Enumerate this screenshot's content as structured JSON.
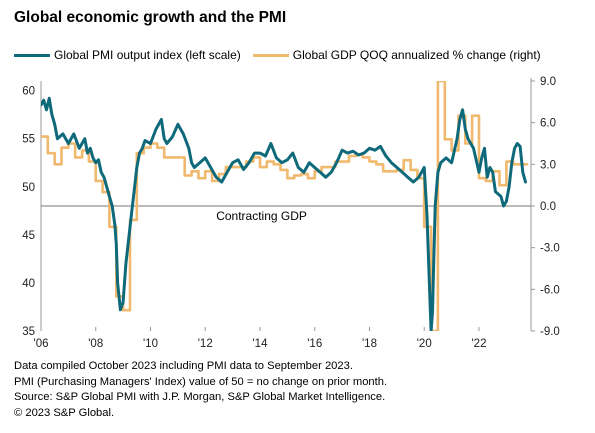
{
  "chart_data": {
    "type": "line",
    "title": "Global economic growth and the PMI",
    "left_axis": {
      "ylim": [
        35,
        61
      ],
      "ticks": [
        35,
        40,
        45,
        50,
        55,
        60
      ]
    },
    "right_axis": {
      "ylim": [
        -9,
        9
      ],
      "ticks": [
        "-9.0",
        "-6.0",
        "-3.0",
        "0.0",
        "3.0",
        "6.0",
        "9.0"
      ]
    },
    "x_axis": {
      "xlim": [
        2006,
        2023.9
      ],
      "ticks": [
        2006,
        2008,
        2010,
        2012,
        2014,
        2016,
        2018,
        2020,
        2022
      ],
      "tick_labels": [
        "'06",
        "'08",
        "'10",
        "'12",
        "'14",
        "'16",
        "'18",
        "'20",
        "'22"
      ]
    },
    "annotation": "Contracting GDP",
    "series": [
      {
        "name": "Global PMI output index (left scale)",
        "axis": "left",
        "color": "#0e6a7a",
        "x": [
          2006.0,
          2006.1,
          2006.2,
          2006.3,
          2006.4,
          2006.5,
          2006.6,
          2006.8,
          2007.0,
          2007.2,
          2007.4,
          2007.6,
          2007.7,
          2007.8,
          2007.9,
          2008.0,
          2008.1,
          2008.2,
          2008.3,
          2008.4,
          2008.5,
          2008.6,
          2008.7,
          2008.75,
          2008.8,
          2008.9,
          2009.0,
          2009.1,
          2009.2,
          2009.3,
          2009.4,
          2009.5,
          2009.6,
          2009.7,
          2009.8,
          2010.0,
          2010.2,
          2010.4,
          2010.5,
          2010.6,
          2010.8,
          2011.0,
          2011.2,
          2011.4,
          2011.5,
          2011.6,
          2011.8,
          2012.0,
          2012.2,
          2012.4,
          2012.6,
          2012.8,
          2013.0,
          2013.2,
          2013.4,
          2013.6,
          2013.8,
          2014.0,
          2014.2,
          2014.4,
          2014.6,
          2014.8,
          2015.0,
          2015.2,
          2015.4,
          2015.6,
          2015.8,
          2016.0,
          2016.2,
          2016.4,
          2016.6,
          2016.8,
          2017.0,
          2017.2,
          2017.4,
          2017.6,
          2017.8,
          2018.0,
          2018.2,
          2018.4,
          2018.6,
          2018.8,
          2019.0,
          2019.2,
          2019.4,
          2019.6,
          2019.8,
          2019.9,
          2020.0,
          2020.1,
          2020.2,
          2020.25,
          2020.3,
          2020.35,
          2020.4,
          2020.5,
          2020.6,
          2020.8,
          2021.0,
          2021.2,
          2021.3,
          2021.4,
          2021.5,
          2021.6,
          2021.8,
          2022.0,
          2022.1,
          2022.2,
          2022.3,
          2022.4,
          2022.5,
          2022.6,
          2022.8,
          2022.9,
          2023.0,
          2023.1,
          2023.2,
          2023.3,
          2023.4,
          2023.5,
          2023.6,
          2023.7
        ],
        "values": [
          58.5,
          59.0,
          58.0,
          59.2,
          57.5,
          56.5,
          55.0,
          55.5,
          54.5,
          55.5,
          54.0,
          55.0,
          53.5,
          54.0,
          53.0,
          52.5,
          52.8,
          51.5,
          51.0,
          50.0,
          49.0,
          48.0,
          46.0,
          44.0,
          40.0,
          37.2,
          38.0,
          42.0,
          44.5,
          47.0,
          49.5,
          52.0,
          53.5,
          54.0,
          54.8,
          54.5,
          56.0,
          57.0,
          55.0,
          54.5,
          55.2,
          56.5,
          55.5,
          54.0,
          52.5,
          52.0,
          52.5,
          53.0,
          52.0,
          51.0,
          50.5,
          51.5,
          52.5,
          52.8,
          51.8,
          52.5,
          53.5,
          53.5,
          53.2,
          54.5,
          53.0,
          52.5,
          52.8,
          53.5,
          52.0,
          51.5,
          52.5,
          52.0,
          51.5,
          51.0,
          51.5,
          52.5,
          53.8,
          53.5,
          53.7,
          53.3,
          53.5,
          54.0,
          53.8,
          54.2,
          53.2,
          52.5,
          52.0,
          51.5,
          51.0,
          50.5,
          51.0,
          51.5,
          52.0,
          47.0,
          39.0,
          35.0,
          37.0,
          42.5,
          48.0,
          51.5,
          52.5,
          53.0,
          52.5,
          55.0,
          57.0,
          58.0,
          56.0,
          55.0,
          54.0,
          51.5,
          53.0,
          54.0,
          51.0,
          52.0,
          51.5,
          49.5,
          49.0,
          48.0,
          48.5,
          50.0,
          52.5,
          54.0,
          54.5,
          54.2,
          51.5,
          50.5
        ],
        "line_width": 3
      },
      {
        "name": "Global GDP QOQ annualized % change (right)",
        "axis": "right",
        "color": "#f0b96d",
        "x": [
          2006.0,
          2006.25,
          2006.5,
          2006.75,
          2007.0,
          2007.25,
          2007.5,
          2007.75,
          2008.0,
          2008.25,
          2008.5,
          2008.75,
          2009.0,
          2009.25,
          2009.5,
          2009.75,
          2010.0,
          2010.25,
          2010.5,
          2010.75,
          2011.0,
          2011.25,
          2011.5,
          2011.75,
          2012.0,
          2012.25,
          2012.5,
          2012.75,
          2013.0,
          2013.25,
          2013.5,
          2013.75,
          2014.0,
          2014.25,
          2014.5,
          2014.75,
          2015.0,
          2015.25,
          2015.5,
          2015.75,
          2016.0,
          2016.25,
          2016.5,
          2016.75,
          2017.0,
          2017.25,
          2017.5,
          2017.75,
          2018.0,
          2018.25,
          2018.5,
          2018.75,
          2019.0,
          2019.25,
          2019.5,
          2019.75,
          2020.0,
          2020.25,
          2020.5,
          2020.75,
          2021.0,
          2021.25,
          2021.5,
          2021.75,
          2022.0,
          2022.25,
          2022.5,
          2022.75,
          2023.0,
          2023.25,
          2023.5
        ],
        "values": [
          5.0,
          3.8,
          3.0,
          4.2,
          4.5,
          3.5,
          4.0,
          3.2,
          1.8,
          1.0,
          -1.5,
          -6.5,
          -7.5,
          -1.0,
          3.8,
          4.2,
          4.5,
          4.2,
          3.5,
          3.5,
          3.5,
          2.2,
          2.5,
          2.0,
          2.5,
          1.8,
          2.3,
          2.8,
          2.8,
          2.8,
          3.2,
          3.5,
          2.8,
          3.2,
          3.0,
          2.6,
          2.0,
          2.2,
          2.3,
          2.0,
          2.5,
          2.8,
          2.8,
          3.2,
          3.2,
          3.6,
          3.7,
          3.5,
          3.2,
          3.0,
          2.5,
          2.5,
          2.6,
          3.3,
          2.6,
          2.0,
          -1.5,
          -9.0,
          9.0,
          4.8,
          4.0,
          6.5,
          4.5,
          6.5,
          2.0,
          1.8,
          2.5,
          1.5,
          3.2,
          3.0,
          3.0
        ],
        "line_width": 2.6
      }
    ]
  },
  "legend": {
    "pmi_label": "Global PMI output index (left scale)",
    "gdp_label": "Global GDP QOQ annualized % change (right)"
  },
  "notes": [
    "Data compiled October 2023 including PMI data to September 2023.",
    "PMI (Purchasing Managers' Index) value of 50 = no change on prior month.",
    "Source: S&P Global PMI with J.P. Morgan, S&P Global Market Intelligence.",
    "© 2023 S&P Global."
  ]
}
